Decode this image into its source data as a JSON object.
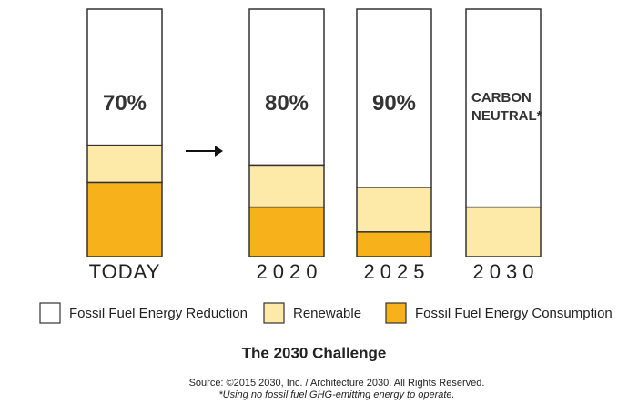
{
  "chart_data": {
    "type": "stacked_bar",
    "title": "The 2030 Challenge",
    "source": "Source: ©2015 2030, Inc. / Architecture 2030. All Rights Reserved.",
    "footnote": "*Using no fossil fuel GHG-emitting energy to operate.",
    "categories": [
      "TODAY",
      "2020",
      "2025",
      "2030"
    ],
    "annotations": [
      "70%",
      "80%",
      "90%",
      "CARBON NEUTRAL*"
    ],
    "series": [
      {
        "name": "Fossil Fuel Energy Consumption",
        "color": "#f7b21b",
        "values": [
          30,
          20,
          10,
          0
        ]
      },
      {
        "name": "Renewable",
        "color": "#fde9a8",
        "values": [
          15,
          17,
          18,
          20
        ]
      },
      {
        "name": "Fossil Fuel Energy Reduction",
        "color": "#ffffff",
        "values": [
          55,
          63,
          72,
          80
        ]
      }
    ]
  }
}
